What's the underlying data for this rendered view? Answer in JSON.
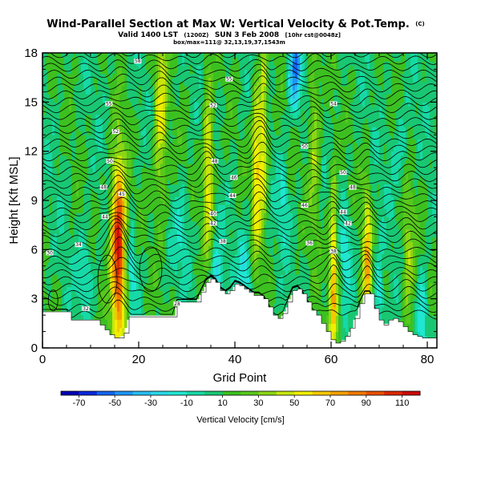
{
  "chart_data": {
    "type": "heatmap",
    "title": {
      "main": "Wind-Parallel Section at Max W: Vertical Velocity & Pot.Temp.",
      "suffix": "(C)"
    },
    "subtitle": {
      "line1_prefix": "Valid 1400 LST",
      "line1_small": "(1200Z)",
      "line1_main": "SUN 3 Feb 2008",
      "line1_small2": "[10hr cst@0048z]",
      "line2": "box/max=111@ 32,13,19,37,1543m"
    },
    "xlabel": "Grid Point",
    "ylabel": "Height [Kft MSL]",
    "xlim": [
      0,
      82
    ],
    "ylim": [
      0,
      18
    ],
    "xticks": [
      "0",
      "20",
      "40",
      "60",
      "80"
    ],
    "yticks": [
      "0",
      "3",
      "6",
      "9",
      "12",
      "15",
      "18"
    ],
    "colorbar": {
      "label": "Vertical Velocity [cm/s]",
      "tick_labels": [
        "-70",
        "-50",
        "-30",
        "-10",
        "10",
        "30",
        "50",
        "70",
        "90",
        "110"
      ],
      "levels": [
        -80,
        -70,
        -60,
        -50,
        -40,
        -30,
        -20,
        -10,
        0,
        10,
        20,
        30,
        40,
        50,
        60,
        70,
        80,
        90,
        100,
        110,
        120
      ],
      "colors": [
        "#0000b4",
        "#0a28dc",
        "#1464f0",
        "#1e96f5",
        "#28bef0",
        "#2ad7e6",
        "#20e6d2",
        "#16d9a6",
        "#19c773",
        "#3cc020",
        "#58c81c",
        "#8cd614",
        "#c8e60a",
        "#f0ee00",
        "#f5c800",
        "#f5a000",
        "#f07800",
        "#e85000",
        "#dc2800",
        "#cc0a0a"
      ]
    },
    "updrafts": [
      {
        "x": 15.8,
        "z": 6.0,
        "peak": 111,
        "width": 1.5
      },
      {
        "x": 24.5,
        "z": 14.0,
        "peak": 45,
        "width": 1.4
      },
      {
        "x": 34.5,
        "z": 11.0,
        "peak": 50,
        "width": 1.1
      },
      {
        "x": 44.5,
        "z": 11.0,
        "peak": 55,
        "width": 0.9
      },
      {
        "x": 46.0,
        "z": 13.0,
        "peak": 50,
        "width": 0.8
      },
      {
        "x": 60.5,
        "z": 4.5,
        "peak": 65,
        "width": 0.9
      },
      {
        "x": 67.5,
        "z": 4.5,
        "peak": 60,
        "width": 0.9
      },
      {
        "x": 56.5,
        "z": 13.0,
        "peak": 32,
        "width": 1.2
      },
      {
        "x": 76.0,
        "z": 5.5,
        "peak": 30,
        "width": 1.3
      }
    ],
    "downdrafts": [
      {
        "x": 52.5,
        "z": 17.0,
        "peak": -60,
        "width": 1.2
      },
      {
        "x": 36.0,
        "z": 3.8,
        "peak": -35,
        "width": 1.5
      },
      {
        "x": 18.5,
        "z": 5.0,
        "peak": -28,
        "width": 1.0
      },
      {
        "x": 42.0,
        "z": 4.5,
        "peak": -28,
        "width": 1.3
      },
      {
        "x": 63.0,
        "z": 6.0,
        "peak": -25,
        "width": 1.2
      },
      {
        "x": 70.0,
        "z": 3.0,
        "peak": -30,
        "width": 1.0
      },
      {
        "x": 79.0,
        "z": 2.0,
        "peak": -30,
        "width": 1.0
      },
      {
        "x": 9.0,
        "z": 5.0,
        "peak": -20,
        "width": 1.5
      },
      {
        "x": 50.0,
        "z": 9.0,
        "peak": -22,
        "width": 1.0
      },
      {
        "x": 29.0,
        "z": 7.0,
        "peak": -18,
        "width": 1.5
      },
      {
        "x": 75.0,
        "z": 12.0,
        "peak": -18,
        "width": 2.0
      }
    ],
    "terrain_heights_kft": [
      2.2,
      2.2,
      2.2,
      2.2,
      2.2,
      2.2,
      1.7,
      1.7,
      1.7,
      1.7,
      1.7,
      1.7,
      1.4,
      1.1,
      0.8,
      0.6,
      0.6,
      0.9,
      1.9,
      1.9,
      1.9,
      1.9,
      1.9,
      1.9,
      1.9,
      1.9,
      1.9,
      1.9,
      2.8,
      2.8,
      2.8,
      2.8,
      2.8,
      3.4,
      4.0,
      4.2,
      4.0,
      3.5,
      3.3,
      3.5,
      3.9,
      3.8,
      3.6,
      3.4,
      3.2,
      3.2,
      3.0,
      2.5,
      2.0,
      1.8,
      2.1,
      2.8,
      3.5,
      3.6,
      3.3,
      2.8,
      2.3,
      2.0,
      1.5,
      1.0,
      0.5,
      0.3,
      0.4,
      0.7,
      1.2,
      1.8,
      2.7,
      3.3,
      3.3,
      2.4,
      1.7,
      1.4,
      1.7,
      1.8,
      1.6,
      1.3,
      1.0,
      0.8,
      0.7,
      0.6,
      0.6,
      0.6,
      0.6
    ],
    "theta_contour_labels": [
      {
        "x": 1.5,
        "z": 5.8,
        "text": "30"
      },
      {
        "x": 7.5,
        "z": 6.3,
        "text": "34"
      },
      {
        "x": 13,
        "z": 8.0,
        "text": "44"
      },
      {
        "x": 16.5,
        "z": 9.4,
        "text": "45"
      },
      {
        "x": 12.7,
        "z": 9.8,
        "text": "48"
      },
      {
        "x": 14,
        "z": 11.4,
        "text": "50"
      },
      {
        "x": 15.2,
        "z": 13.2,
        "text": "52"
      },
      {
        "x": 13.8,
        "z": 14.9,
        "text": "55"
      },
      {
        "x": 19.8,
        "z": 17.5,
        "text": "58"
      },
      {
        "x": 35.5,
        "z": 8.2,
        "text": "40"
      },
      {
        "x": 35.5,
        "z": 7.6,
        "text": "42"
      },
      {
        "x": 37.5,
        "z": 6.5,
        "text": "38"
      },
      {
        "x": 39.5,
        "z": 9.3,
        "text": "44"
      },
      {
        "x": 39.8,
        "z": 10.4,
        "text": "46"
      },
      {
        "x": 35.8,
        "z": 11.4,
        "text": "48"
      },
      {
        "x": 35.5,
        "z": 14.8,
        "text": "52"
      },
      {
        "x": 38.8,
        "z": 16.4,
        "text": "55"
      },
      {
        "x": 54.5,
        "z": 8.7,
        "text": "46"
      },
      {
        "x": 54.5,
        "z": 12.3,
        "text": "50"
      },
      {
        "x": 60.5,
        "z": 5.9,
        "text": "38"
      },
      {
        "x": 55.5,
        "z": 6.4,
        "text": "36"
      },
      {
        "x": 62.5,
        "z": 8.3,
        "text": "44"
      },
      {
        "x": 63.5,
        "z": 7.6,
        "text": "42"
      },
      {
        "x": 64.5,
        "z": 9.8,
        "text": "48"
      },
      {
        "x": 62.5,
        "z": 10.7,
        "text": "50"
      },
      {
        "x": 60.5,
        "z": 14.9,
        "text": "54"
      },
      {
        "x": 28,
        "z": 2.7,
        "text": "28"
      },
      {
        "x": 9,
        "z": 2.4,
        "text": "32"
      }
    ]
  }
}
